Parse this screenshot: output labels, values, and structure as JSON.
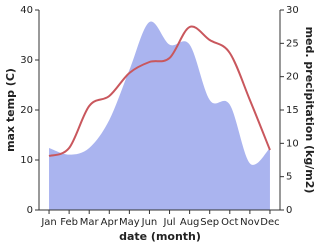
{
  "chart_data": {
    "type": "line-area",
    "x_label": "date (month)",
    "y_label": "max temp (C)",
    "y2_label": "med. precipitation (kg/m2)",
    "categories": [
      "Jan",
      "Feb",
      "Mar",
      "Apr",
      "May",
      "Jun",
      "Jul",
      "Aug",
      "Sep",
      "Oct",
      "Nov",
      "Dec"
    ],
    "series": [
      {
        "name": "med. precipitation",
        "type": "area",
        "axis": "y2",
        "color": "#aab4ef",
        "values": [
          9.3,
          8.3,
          9.3,
          13.5,
          21,
          28.2,
          24.8,
          24.8,
          16.5,
          15.8,
          7,
          9.3
        ]
      },
      {
        "name": "max temp",
        "type": "line",
        "axis": "y",
        "color": "#c9575d",
        "values": [
          10.8,
          12.4,
          20.8,
          22.8,
          27.4,
          29.6,
          30.4,
          36.6,
          34,
          31.4,
          22,
          12
        ]
      }
    ],
    "ylim": [
      0,
      40
    ],
    "yticks": [
      0,
      10,
      20,
      30,
      40
    ],
    "y2lim": [
      0,
      30
    ],
    "y2ticks": [
      0,
      5,
      10,
      15,
      20,
      25,
      30
    ]
  }
}
